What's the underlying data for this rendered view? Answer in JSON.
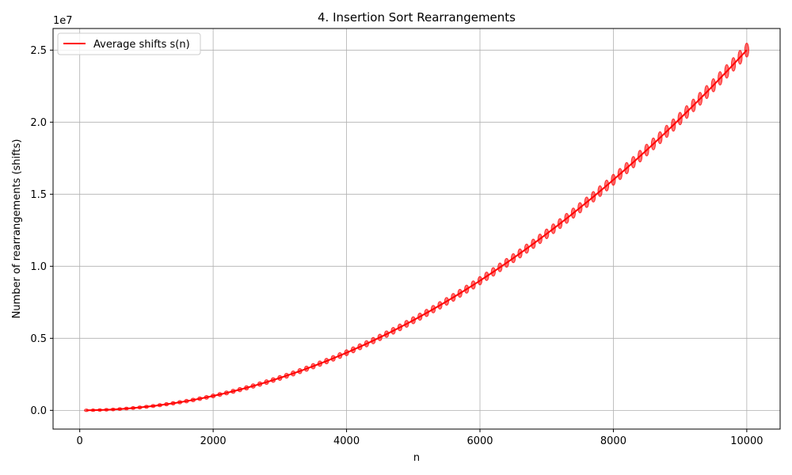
{
  "chart_data": {
    "type": "line",
    "title": "4. Insertion Sort Rearrangements",
    "xlabel": "n",
    "ylabel": "Number of rearrangements (shifts)",
    "y_offset_label": "1e7",
    "xlim": [
      -400,
      10500
    ],
    "ylim": [
      -1300000,
      26500000
    ],
    "x_ticks": [
      0,
      2000,
      4000,
      6000,
      8000,
      10000
    ],
    "x_tick_labels": [
      "0",
      "2000",
      "4000",
      "6000",
      "8000",
      "10000"
    ],
    "y_ticks": [
      0,
      5000000,
      10000000,
      15000000,
      20000000,
      25000000
    ],
    "y_tick_labels": [
      "0.0",
      "0.5",
      "1.0",
      "1.5",
      "2.0",
      "2.5"
    ],
    "grid": true,
    "legend_position": "upper-left",
    "series": [
      {
        "name": "Average shifts s(n)",
        "color": "#ff0000",
        "x": [
          100,
          200,
          300,
          400,
          500,
          600,
          700,
          800,
          900,
          1000,
          1100,
          1200,
          1300,
          1400,
          1500,
          1600,
          1700,
          1800,
          1900,
          2000,
          2100,
          2200,
          2300,
          2400,
          2500,
          2600,
          2700,
          2800,
          2900,
          3000,
          3100,
          3200,
          3300,
          3400,
          3500,
          3600,
          3700,
          3800,
          3900,
          4000,
          4100,
          4200,
          4300,
          4400,
          4500,
          4600,
          4700,
          4800,
          4900,
          5000,
          5100,
          5200,
          5300,
          5400,
          5500,
          5600,
          5700,
          5800,
          5900,
          6000,
          6100,
          6200,
          6300,
          6400,
          6500,
          6600,
          6700,
          6800,
          6900,
          7000,
          7100,
          7200,
          7300,
          7400,
          7500,
          7600,
          7700,
          7800,
          7900,
          8000,
          8100,
          8200,
          8300,
          8400,
          8500,
          8600,
          8700,
          8800,
          8900,
          9000,
          9100,
          9200,
          9300,
          9400,
          9500,
          9600,
          9700,
          9800,
          9900,
          10000
        ],
        "y": [
          2500,
          10000,
          22500,
          40000,
          62500,
          90000,
          122500,
          160000,
          202500,
          250000,
          302500,
          360000,
          422500,
          490000,
          562500,
          640000,
          722500,
          810000,
          902500,
          1000000,
          1102500,
          1210000,
          1322500,
          1440000,
          1562500,
          1690000,
          1822500,
          1960000,
          2102500,
          2250000,
          2402500,
          2560000,
          2722500,
          2890000,
          3062500,
          3240000,
          3422500,
          3610000,
          3802500,
          4000000,
          4202500,
          4410000,
          4622500,
          4840000,
          5062500,
          5290000,
          5522500,
          5760000,
          6002500,
          6250000,
          6502500,
          6760000,
          7022500,
          7290000,
          7562500,
          7840000,
          8122500,
          8410000,
          8702500,
          9000000,
          9302500,
          9610000,
          9922500,
          10240000,
          10562500,
          10890000,
          11222500,
          11560000,
          11902500,
          12250000,
          12602500,
          12960000,
          13322500,
          13690000,
          14062500,
          14440000,
          14822500,
          15210000,
          15602500,
          16000000,
          16402500,
          16810000,
          17222500,
          17640000,
          18062500,
          18490000,
          18922500,
          19360000,
          19802500,
          20250000,
          20702500,
          21160000,
          21622500,
          22090000,
          22562500,
          23040000,
          23522500,
          24010000,
          24502500,
          25000000
        ]
      }
    ]
  }
}
